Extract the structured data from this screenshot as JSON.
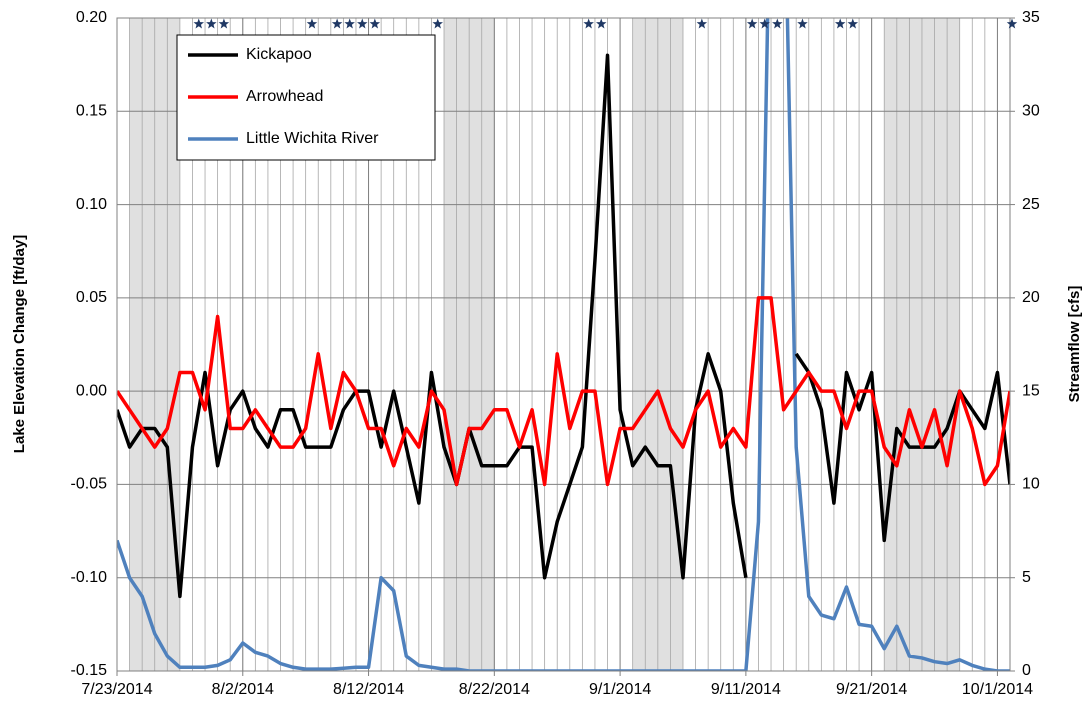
{
  "chart_data": {
    "type": "line",
    "y_label": "Lake Elevation Change [ft/day]",
    "y2_label": "Streamflow [cfs]",
    "x": [
      "2014-07-23",
      "2014-07-24",
      "2014-07-25",
      "2014-07-26",
      "2014-07-27",
      "2014-07-28",
      "2014-07-29",
      "2014-07-30",
      "2014-07-31",
      "2014-08-01",
      "2014-08-02",
      "2014-08-03",
      "2014-08-04",
      "2014-08-05",
      "2014-08-06",
      "2014-08-07",
      "2014-08-08",
      "2014-08-09",
      "2014-08-10",
      "2014-08-11",
      "2014-08-12",
      "2014-08-13",
      "2014-08-14",
      "2014-08-15",
      "2014-08-16",
      "2014-08-17",
      "2014-08-18",
      "2014-08-19",
      "2014-08-20",
      "2014-08-21",
      "2014-08-22",
      "2014-08-23",
      "2014-08-24",
      "2014-08-25",
      "2014-08-26",
      "2014-08-27",
      "2014-08-28",
      "2014-08-29",
      "2014-08-30",
      "2014-08-31",
      "2014-09-01",
      "2014-09-02",
      "2014-09-03",
      "2014-09-04",
      "2014-09-05",
      "2014-09-06",
      "2014-09-07",
      "2014-09-08",
      "2014-09-09",
      "2014-09-10",
      "2014-09-11",
      "2014-09-12",
      "2014-09-13",
      "2014-09-14",
      "2014-09-15",
      "2014-09-16",
      "2014-09-17",
      "2014-09-18",
      "2014-09-19",
      "2014-09-20",
      "2014-09-21",
      "2014-09-22",
      "2014-09-23",
      "2014-09-24",
      "2014-09-25",
      "2014-09-26",
      "2014-09-27",
      "2014-09-28",
      "2014-09-29",
      "2014-09-30",
      "2014-10-01",
      "2014-10-02"
    ],
    "series": [
      {
        "name": "Kickapoo",
        "color": "#000000",
        "values": [
          -0.01,
          -0.03,
          -0.02,
          -0.02,
          -0.03,
          -0.11,
          -0.03,
          0.01,
          -0.04,
          -0.01,
          0.0,
          -0.02,
          -0.03,
          -0.01,
          -0.01,
          -0.03,
          -0.03,
          -0.03,
          -0.01,
          0.0,
          0.0,
          -0.03,
          0.0,
          -0.03,
          -0.06,
          0.01,
          -0.03,
          -0.05,
          -0.02,
          -0.04,
          -0.04,
          -0.04,
          -0.03,
          -0.03,
          -0.1,
          -0.07,
          -0.05,
          -0.03,
          0.07,
          0.18,
          -0.01,
          -0.04,
          -0.03,
          -0.04,
          -0.04,
          -0.1,
          -0.01,
          0.02,
          0.0,
          -0.06,
          -0.1,
          null,
          null,
          null,
          0.02,
          0.01,
          -0.01,
          -0.06,
          0.01,
          -0.01,
          0.01,
          -0.08,
          -0.02,
          -0.03,
          -0.03,
          -0.03,
          -0.02,
          0.0,
          -0.01,
          -0.02,
          0.01,
          -0.05
        ]
      },
      {
        "name": "Arrowhead",
        "color": "#ff0000",
        "values": [
          0.0,
          -0.01,
          -0.02,
          -0.03,
          -0.02,
          0.01,
          0.01,
          -0.01,
          0.04,
          -0.02,
          -0.02,
          -0.01,
          -0.02,
          -0.03,
          -0.03,
          -0.02,
          0.02,
          -0.02,
          0.01,
          0.0,
          -0.02,
          -0.02,
          -0.04,
          -0.02,
          -0.03,
          0.0,
          -0.01,
          -0.05,
          -0.02,
          -0.02,
          -0.01,
          -0.01,
          -0.03,
          -0.01,
          -0.05,
          0.02,
          -0.02,
          0.0,
          0.0,
          -0.05,
          -0.02,
          -0.02,
          -0.01,
          0.0,
          -0.02,
          -0.03,
          -0.01,
          0.0,
          -0.03,
          -0.02,
          -0.03,
          0.05,
          0.05,
          -0.01,
          0.0,
          0.01,
          0.0,
          0.0,
          -0.02,
          0.0,
          0.0,
          -0.03,
          -0.04,
          -0.01,
          -0.03,
          -0.01,
          -0.04,
          0.0,
          -0.02,
          -0.05,
          -0.04,
          0.0
        ]
      },
      {
        "name": "Little Wichita River",
        "color": "#4f81bd",
        "axis": "y2",
        "values": [
          7,
          5,
          4,
          2,
          0.8,
          0.2,
          0.2,
          0.2,
          0.3,
          0.6,
          1.5,
          1.0,
          0.8,
          0.4,
          0.2,
          0.1,
          0.1,
          0.1,
          0.15,
          0.2,
          0.2,
          5.0,
          4.3,
          0.8,
          0.3,
          0.2,
          0.1,
          0.1,
          0,
          0,
          0,
          0,
          0,
          0,
          0,
          0,
          0,
          0,
          0,
          0,
          0,
          0,
          0,
          0,
          0,
          0,
          0,
          0,
          0,
          0,
          0,
          8,
          45,
          45,
          12,
          4,
          3,
          2.8,
          4.5,
          2.5,
          2.4,
          1.2,
          2.4,
          0.8,
          0.7,
          0.5,
          0.4,
          0.6,
          0.3,
          0.1,
          0,
          0
        ]
      }
    ],
    "xlim": [
      "2014-07-23",
      "2014-10-02"
    ],
    "xticks": [
      {
        "value": "2014-07-23",
        "label": "7/23/2014"
      },
      {
        "value": "2014-08-02",
        "label": "8/2/2014"
      },
      {
        "value": "2014-08-12",
        "label": "8/12/2014"
      },
      {
        "value": "2014-08-22",
        "label": "8/22/2014"
      },
      {
        "value": "2014-09-01",
        "label": "9/1/2014"
      },
      {
        "value": "2014-09-11",
        "label": "9/11/2014"
      },
      {
        "value": "2014-09-21",
        "label": "9/21/2014"
      },
      {
        "value": "2014-10-01",
        "label": "10/1/2014"
      }
    ],
    "ylim": [
      -0.15,
      0.2
    ],
    "yticks": [
      {
        "value": -0.15,
        "label": "-0.15"
      },
      {
        "value": -0.1,
        "label": "-0.10"
      },
      {
        "value": -0.05,
        "label": "-0.05"
      },
      {
        "value": 0,
        "label": "0.00"
      },
      {
        "value": 0.05,
        "label": "0.05"
      },
      {
        "value": 0.1,
        "label": "0.10"
      },
      {
        "value": 0.15,
        "label": "0.15"
      },
      {
        "value": 0.2,
        "label": "0.20"
      }
    ],
    "y2lim": [
      0,
      35
    ],
    "y2ticks": [
      0,
      5,
      10,
      15,
      20,
      25,
      30,
      35
    ],
    "grid": true,
    "daily_grid": true,
    "legend": "upper left",
    "shaded_ranges": [
      [
        "2014-07-24",
        "2014-07-28"
      ],
      [
        "2014-08-18",
        "2014-08-22"
      ],
      [
        "2014-09-02",
        "2014-09-06"
      ],
      [
        "2014-09-22",
        "2014-09-28"
      ]
    ],
    "star_dates": [
      "2014-07-29",
      "2014-07-30",
      "2014-07-31",
      "2014-08-07",
      "2014-08-09",
      "2014-08-10",
      "2014-08-11",
      "2014-08-12",
      "2014-08-17",
      "2014-08-29",
      "2014-08-30",
      "2014-09-07",
      "2014-09-11",
      "2014-09-12",
      "2014-09-13",
      "2014-09-15",
      "2014-09-18",
      "2014-09-19",
      "2014-10-02"
    ]
  }
}
